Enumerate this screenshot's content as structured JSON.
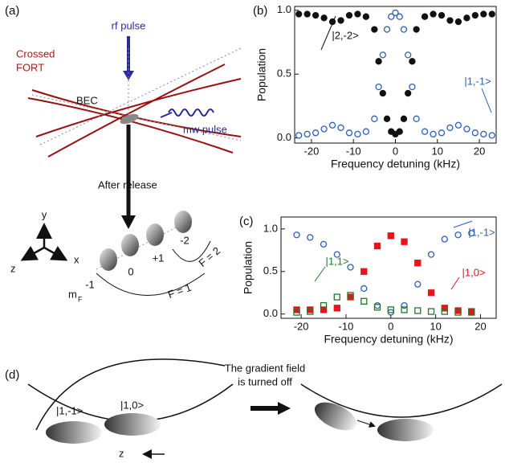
{
  "diagram_a": {
    "panel_label": "(a)",
    "rf_pulse": "rf pulse",
    "fort_line1": "Crossed",
    "fort_line2": "FORT",
    "bec": "BEC",
    "mw_pulse": "mw pulse",
    "after_release": "After release",
    "axis_y": "y",
    "axis_z": "z",
    "axis_x": "x",
    "m_minus1": "-1",
    "m_0": "0",
    "m_plus1": "+1",
    "m_minus2": "-2",
    "mf_m": "m",
    "mf_sub": "F",
    "f1": "F = 1",
    "f2": "F = 2"
  },
  "chart_data": [
    {
      "type": "scatter",
      "panel_label": "(b)",
      "x_label": "Frequency detuning (kHz)",
      "y_label": "Population",
      "x": [
        -23,
        -21,
        -19,
        -17,
        -15,
        -13,
        -11,
        -9,
        -7,
        -5,
        -4,
        -3,
        -2,
        -1,
        0,
        1,
        2,
        3,
        4,
        5,
        7,
        9,
        11,
        13,
        15,
        17,
        19,
        21,
        23
      ],
      "series": [
        {
          "name": "|2,-2>",
          "color": "#111111",
          "marker": "filled-circle",
          "values": [
            0.97,
            0.97,
            0.96,
            0.94,
            0.91,
            0.92,
            0.96,
            0.97,
            0.95,
            0.85,
            0.6,
            0.35,
            0.15,
            0.05,
            0.03,
            0.05,
            0.15,
            0.35,
            0.6,
            0.85,
            0.95,
            0.97,
            0.96,
            0.92,
            0.91,
            0.94,
            0.96,
            0.97,
            0.97
          ]
        },
        {
          "name": "|1,-1>",
          "color": "#2b5fb8",
          "marker": "open-circle",
          "values": [
            0.02,
            0.03,
            0.04,
            0.07,
            0.1,
            0.08,
            0.04,
            0.03,
            0.05,
            0.15,
            0.4,
            0.65,
            0.85,
            0.95,
            0.98,
            0.95,
            0.85,
            0.65,
            0.4,
            0.15,
            0.05,
            0.03,
            0.04,
            0.08,
            0.1,
            0.07,
            0.04,
            0.03,
            0.02
          ]
        }
      ],
      "xlim": [
        -24,
        24
      ],
      "xticks": [
        -20,
        -10,
        0,
        10,
        20
      ],
      "ylim": [
        -0.04,
        1.03
      ],
      "yticks": [
        {
          "value": 0,
          "label": "0.0"
        },
        {
          "value": 0.5,
          "label": "0.5"
        },
        {
          "value": 1,
          "label": "1.0"
        }
      ]
    },
    {
      "type": "scatter",
      "panel_label": "(c)",
      "x_label": "Frequency detuning (kHz)",
      "y_label": "Population",
      "x": [
        -21,
        -18,
        -15,
        -12,
        -9,
        -6,
        -3,
        0,
        3,
        6,
        9,
        12,
        15,
        18
      ],
      "series": [
        {
          "name": "|1,-1>",
          "color": "#2b5fb8",
          "marker": "open-circle",
          "values": [
            0.93,
            0.9,
            0.82,
            0.7,
            0.55,
            0.3,
            0.1,
            0.02,
            0.1,
            0.35,
            0.7,
            0.88,
            0.93,
            0.95
          ]
        },
        {
          "name": "|1,0>",
          "color": "#e8141b",
          "marker": "filled-square",
          "values": [
            0.05,
            0.05,
            0.05,
            0.07,
            0.2,
            0.5,
            0.8,
            0.92,
            0.85,
            0.6,
            0.25,
            0.07,
            0.04,
            0.03
          ]
        },
        {
          "name": "|1,1>",
          "color": "#1e7a2a",
          "marker": "open-square",
          "values": [
            0.02,
            0.03,
            0.1,
            0.2,
            0.22,
            0.15,
            0.08,
            0.05,
            0.05,
            0.04,
            0.03,
            0.03,
            0.02,
            0.02
          ]
        }
      ],
      "xlim": [
        -24.5,
        23.5
      ],
      "xticks": [
        -20,
        -10,
        0,
        10,
        20
      ],
      "ylim": [
        -0.05,
        1.14
      ],
      "yticks": [
        {
          "value": 0,
          "label": "0.0"
        },
        {
          "value": 0.5,
          "label": "0.5"
        },
        {
          "value": 1,
          "label": "1.0"
        }
      ]
    }
  ],
  "diagram_d": {
    "panel_label": "(d)",
    "state_a": "|1,-1>",
    "state_b": "|1,0>",
    "note_line1": "The gradient field",
    "note_line2": "is turned off",
    "axis_z": "z"
  }
}
